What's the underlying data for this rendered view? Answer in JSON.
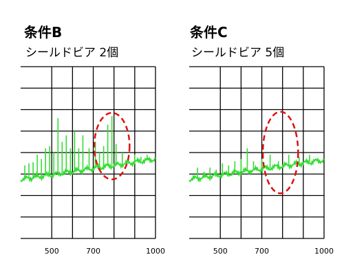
{
  "chart_data": [
    {
      "type": "line",
      "title": "条件B",
      "subtitle": "シールドビア 2個",
      "xlim": [
        350,
        1000
      ],
      "ylim": [
        0,
        8
      ],
      "xticks": [
        500,
        700,
        1000
      ],
      "grid": true,
      "series_color": "#33dd33",
      "highlight_color": "#dd1111",
      "baseline": {
        "x": [
          350,
          1000
        ],
        "y": [
          2.75,
          3.7
        ]
      },
      "spikes": [
        {
          "x": 370,
          "y": 3.4
        },
        {
          "x": 390,
          "y": 3.5
        },
        {
          "x": 410,
          "y": 3.55
        },
        {
          "x": 430,
          "y": 3.9
        },
        {
          "x": 450,
          "y": 3.7
        },
        {
          "x": 470,
          "y": 4.2
        },
        {
          "x": 490,
          "y": 4.3
        },
        {
          "x": 510,
          "y": 4.0
        },
        {
          "x": 530,
          "y": 5.6
        },
        {
          "x": 550,
          "y": 4.5
        },
        {
          "x": 570,
          "y": 4.8
        },
        {
          "x": 590,
          "y": 4.2
        },
        {
          "x": 610,
          "y": 5.0
        },
        {
          "x": 630,
          "y": 4.2
        },
        {
          "x": 650,
          "y": 4.8
        },
        {
          "x": 680,
          "y": 4.2
        },
        {
          "x": 710,
          "y": 4.5
        },
        {
          "x": 730,
          "y": 4.0
        },
        {
          "x": 750,
          "y": 4.3
        },
        {
          "x": 770,
          "y": 5.3
        },
        {
          "x": 790,
          "y": 5.7
        },
        {
          "x": 810,
          "y": 4.4
        },
        {
          "x": 840,
          "y": 4.0
        },
        {
          "x": 870,
          "y": 3.9
        },
        {
          "x": 900,
          "y": 3.9
        },
        {
          "x": 930,
          "y": 3.8
        },
        {
          "x": 960,
          "y": 3.9
        }
      ],
      "highlight": {
        "cx": 790,
        "cy": 4.3,
        "rx": 85,
        "ry": 1.55
      }
    },
    {
      "type": "line",
      "title": "条件C",
      "subtitle": "シールドビア 5個",
      "xlim": [
        350,
        1000
      ],
      "ylim": [
        0,
        8
      ],
      "xticks": [
        500,
        700,
        1000
      ],
      "grid": true,
      "series_color": "#33dd33",
      "highlight_color": "#dd1111",
      "baseline": {
        "x": [
          350,
          1000
        ],
        "y": [
          2.75,
          3.65
        ]
      },
      "spikes": [
        {
          "x": 390,
          "y": 3.3
        },
        {
          "x": 420,
          "y": 3.1
        },
        {
          "x": 450,
          "y": 3.3
        },
        {
          "x": 480,
          "y": 3.2
        },
        {
          "x": 510,
          "y": 3.5
        },
        {
          "x": 540,
          "y": 3.4
        },
        {
          "x": 570,
          "y": 3.6
        },
        {
          "x": 600,
          "y": 3.7
        },
        {
          "x": 630,
          "y": 4.2
        },
        {
          "x": 660,
          "y": 3.6
        },
        {
          "x": 700,
          "y": 3.7
        },
        {
          "x": 740,
          "y": 3.9
        },
        {
          "x": 780,
          "y": 3.6
        },
        {
          "x": 830,
          "y": 3.9
        },
        {
          "x": 880,
          "y": 3.8
        },
        {
          "x": 930,
          "y": 3.9
        }
      ],
      "highlight": {
        "cx": 790,
        "cy": 4.0,
        "rx": 85,
        "ry": 1.9
      }
    }
  ]
}
